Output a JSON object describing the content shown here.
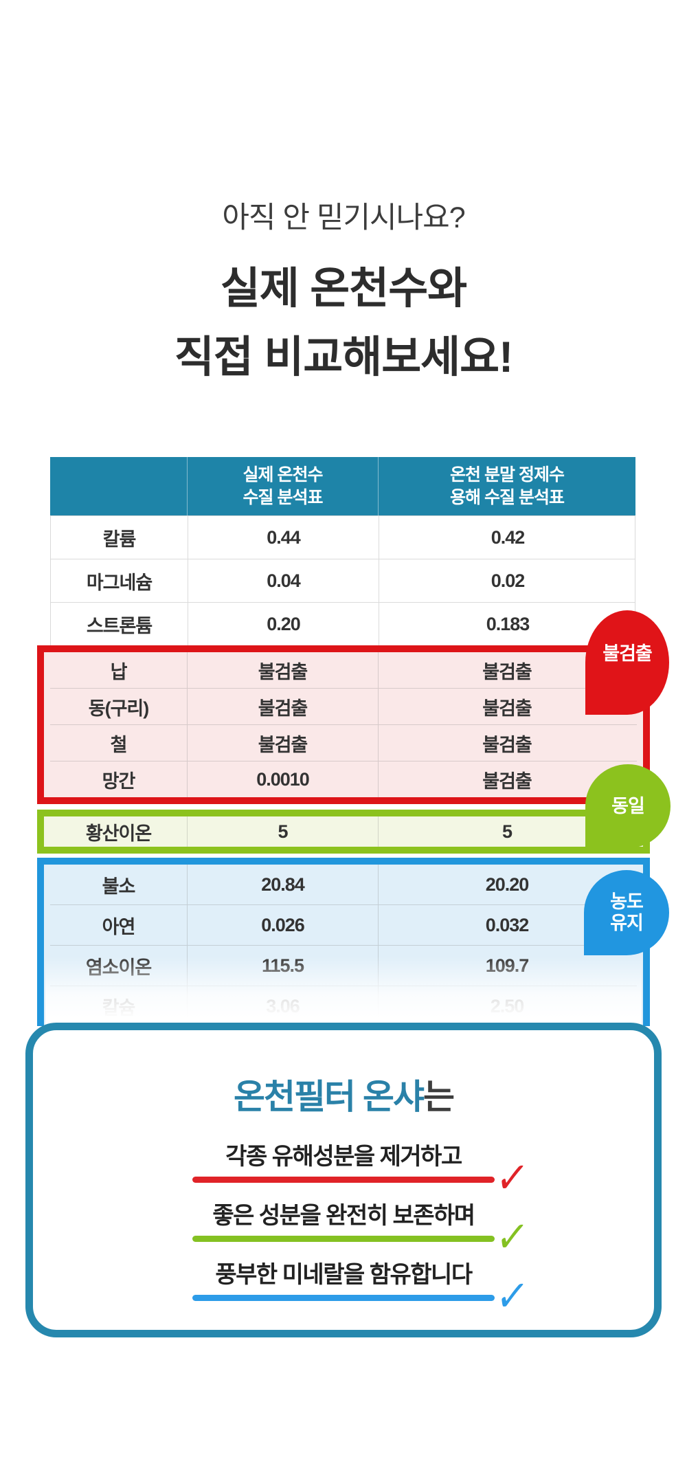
{
  "headline": {
    "subtitle": "아직 안 믿기시나요?",
    "title_line1": "실제 온천수와",
    "title_line2": "직접 비교해보세요!"
  },
  "table": {
    "header": {
      "col2": {
        "line1": "실제 온천수",
        "line2": "수질 분석표"
      },
      "col3": {
        "line1": "온천 분말 정제수",
        "line2": "용해 수질 분석표"
      }
    },
    "sections": [
      {
        "style": "plain",
        "rows": [
          [
            "칼륨",
            "0.44",
            "0.42"
          ],
          [
            "마그네슘",
            "0.04",
            "0.02"
          ],
          [
            "스트론튬",
            "0.20",
            "0.183"
          ]
        ]
      },
      {
        "style": "red-box",
        "rows": [
          [
            "납",
            "불검출",
            "불검출"
          ],
          [
            "동(구리)",
            "불검출",
            "불검출"
          ],
          [
            "철",
            "불검출",
            "불검출"
          ],
          [
            "망간",
            "0.0010",
            "불검출"
          ]
        ]
      },
      {
        "style": "green-box",
        "rows": [
          [
            "황산이온",
            "5",
            "5"
          ]
        ]
      },
      {
        "style": "blue-box",
        "rows": [
          [
            "불소",
            "20.84",
            "20.20"
          ],
          [
            "아연",
            "0.026",
            "0.032"
          ],
          [
            "염소이온",
            "115.5",
            "109.7"
          ],
          [
            "칼슘",
            "3.06",
            "2.50"
          ]
        ]
      }
    ]
  },
  "badges": [
    {
      "label": "불검출",
      "color": "#e01418"
    },
    {
      "label": "동일",
      "color": "#8cc21e"
    },
    {
      "line1": "농도",
      "line2": "유지",
      "color": "#2196e0"
    }
  ],
  "summary_box": {
    "title_highlight": "온천필터 온샤",
    "title_suffix": "는",
    "check": "✓",
    "items": [
      {
        "text": "각종 유해성분을 제거하고",
        "color": "#e02328"
      },
      {
        "text": "좋은 성분을 완전히 보존하며",
        "color": "#84c122"
      },
      {
        "text": "풍부한 미네랄을 함유합니다",
        "color": "#2d9ce8"
      }
    ]
  },
  "colors": {
    "table_header_bg": "#1e84a8",
    "red_border": "#dd1418",
    "red_row_bg": "#fae8e8",
    "green_border": "#8cc21e",
    "green_row_bg": "#f3f7e4",
    "blue_border": "#2196dc",
    "blue_row_bg": "#e0eff9",
    "summary_box_border": "#2688ae",
    "title_accent": "#2a81a8"
  }
}
